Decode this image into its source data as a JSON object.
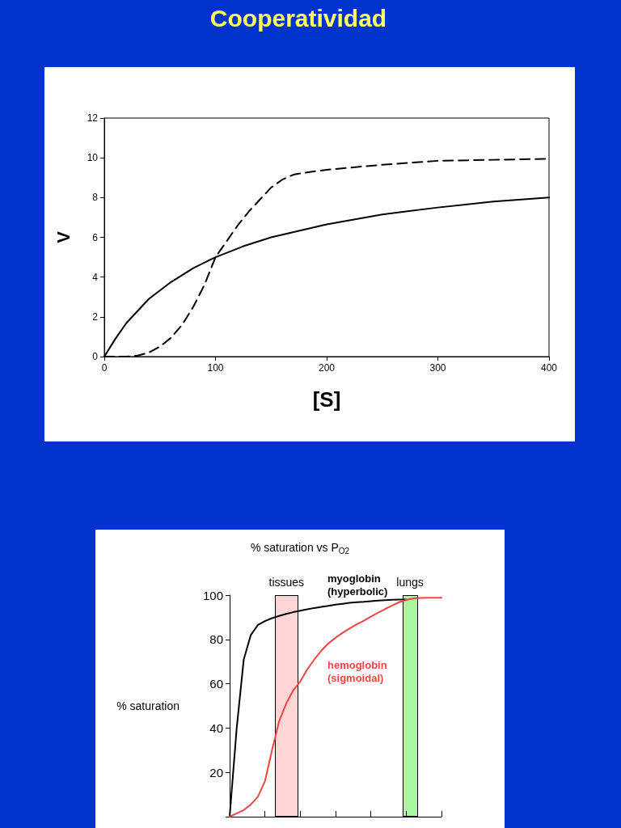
{
  "chart_data": [
    {
      "type": "line",
      "title": "Cooperatividad",
      "xlabel": "[S]",
      "ylabel": "V",
      "xlim": [
        0,
        400
      ],
      "ylim": [
        0,
        12
      ],
      "xticks": [
        0,
        100,
        200,
        300,
        400
      ],
      "yticks": [
        0,
        2,
        4,
        6,
        8,
        10,
        12
      ],
      "marker": "none",
      "series": [
        {
          "color": "#000000",
          "line_style": "solid",
          "x": [
            0,
            10,
            20,
            40,
            60,
            80,
            100,
            125,
            150,
            200,
            250,
            300,
            350,
            400
          ],
          "values": [
            0,
            0.9,
            1.7,
            2.9,
            3.75,
            4.45,
            5,
            5.55,
            6,
            6.65,
            7.15,
            7.5,
            7.8,
            8
          ]
        },
        {
          "color": "#000000",
          "line_style": "dashed",
          "x": [
            0,
            20,
            30,
            40,
            50,
            60,
            70,
            80,
            90,
            100,
            110,
            120,
            130,
            140,
            150,
            160,
            170,
            180,
            200,
            250,
            300,
            350,
            400
          ],
          "values": [
            0,
            0,
            0.05,
            0.2,
            0.5,
            0.95,
            1.6,
            2.5,
            3.6,
            5,
            5.8,
            6.6,
            7.3,
            7.9,
            8.5,
            8.9,
            9.15,
            9.25,
            9.4,
            9.65,
            9.85,
            9.9,
            9.95
          ]
        }
      ]
    },
    {
      "type": "line",
      "title": "% saturation vs P$_{O2}$",
      "ylabel": "% saturation",
      "ylim": [
        0,
        100
      ],
      "yticks": [
        {
          "value": 0,
          "label": null
        },
        20,
        40,
        60,
        80,
        100
      ],
      "tick_labels": "y",
      "marker": "none",
      "categories": [
        null,
        null,
        null,
        null,
        null,
        null,
        null,
        null,
        null,
        null,
        null,
        null,
        null,
        null,
        null,
        null,
        null,
        null,
        null,
        null,
        null,
        null,
        null,
        null,
        null,
        null,
        null,
        null,
        null,
        null,
        null
      ],
      "annotations": [
        "tissues",
        "lungs"
      ],
      "series": [
        {
          "name": "myoglobin\n(hyperbolic)",
          "color": "#000000",
          "values": [
            0,
            40,
            71,
            82,
            86.5,
            88.3,
            89.6,
            90.6,
            91.5,
            92.3,
            93,
            93.6,
            94.2,
            94.7,
            95.2,
            95.7,
            96.1,
            96.5,
            96.8,
            97,
            97.3,
            97.5,
            97.7,
            97.9,
            98,
            98,
            null,
            null,
            null,
            null,
            null
          ]
        },
        {
          "name": "hemoglobin\n(sigmoidal)",
          "color": "#ee4444",
          "values": [
            0,
            1.5,
            3,
            5.5,
            9,
            16,
            30,
            43,
            51,
            57,
            61,
            66.5,
            71,
            75,
            78.3,
            80.8,
            83,
            85,
            86.8,
            88.5,
            90.3,
            92,
            93.7,
            95.3,
            96.8,
            97.8,
            98.5,
            98.7,
            98.8,
            98.8,
            98.8
          ]
        }
      ]
    }
  ]
}
